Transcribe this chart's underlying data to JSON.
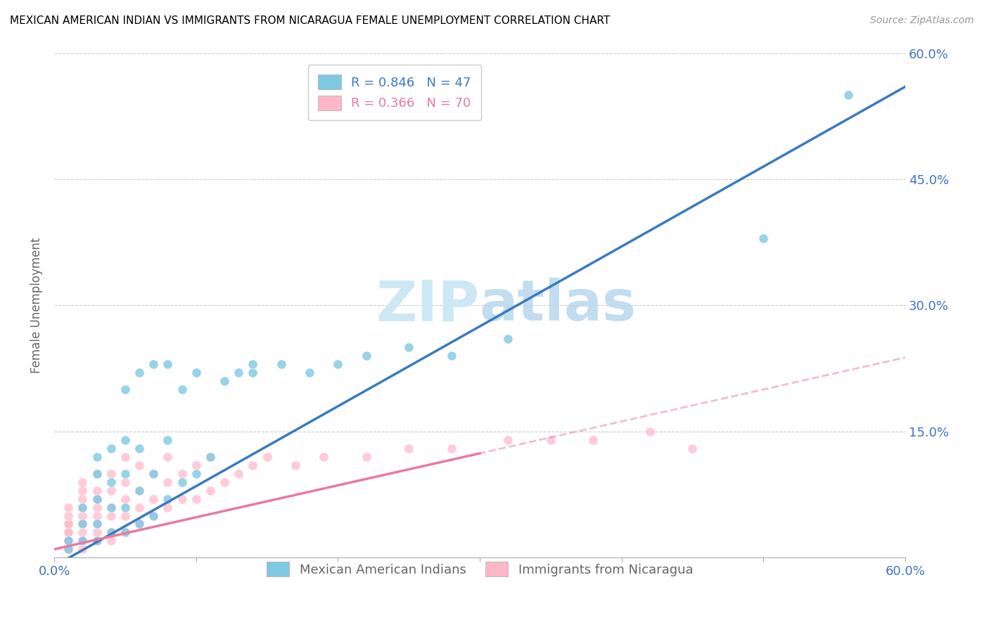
{
  "title": "MEXICAN AMERICAN INDIAN VS IMMIGRANTS FROM NICARAGUA FEMALE UNEMPLOYMENT CORRELATION CHART",
  "source": "Source: ZipAtlas.com",
  "ylabel": "Female Unemployment",
  "xlabel": "",
  "xmin": 0.0,
  "xmax": 0.6,
  "ymin": 0.0,
  "ymax": 0.6,
  "yticks": [
    0.0,
    0.15,
    0.3,
    0.45,
    0.6
  ],
  "ytick_labels": [
    "",
    "15.0%",
    "30.0%",
    "45.0%",
    "60.0%"
  ],
  "xtick_labels": [
    "0.0%",
    "",
    "",
    "",
    "",
    "",
    "60.0%"
  ],
  "legend_R1": "R = 0.846",
  "legend_N1": "N = 47",
  "legend_R2": "R = 0.366",
  "legend_N2": "N = 70",
  "legend_label1": "Mexican American Indians",
  "legend_label2": "Immigrants from Nicaragua",
  "color_blue": "#7ec8e3",
  "color_pink": "#ffb6c8",
  "color_blue_line": "#3a7abf",
  "color_pink_line": "#e87aa0",
  "watermark": "ZIPatlas",
  "watermark_color": "#cde8f5",
  "blue_line_intercept": -0.01,
  "blue_line_slope": 0.95,
  "pink_line_intercept": 0.01,
  "pink_line_slope": 0.38,
  "blue_scatter_x": [
    0.01,
    0.01,
    0.02,
    0.02,
    0.02,
    0.03,
    0.03,
    0.03,
    0.03,
    0.03,
    0.04,
    0.04,
    0.04,
    0.04,
    0.05,
    0.05,
    0.05,
    0.05,
    0.05,
    0.06,
    0.06,
    0.06,
    0.06,
    0.07,
    0.07,
    0.07,
    0.08,
    0.08,
    0.08,
    0.09,
    0.09,
    0.1,
    0.1,
    0.11,
    0.12,
    0.13,
    0.14,
    0.14,
    0.16,
    0.18,
    0.2,
    0.22,
    0.25,
    0.28,
    0.32,
    0.5,
    0.56
  ],
  "blue_scatter_y": [
    0.01,
    0.02,
    0.02,
    0.04,
    0.06,
    0.02,
    0.04,
    0.07,
    0.1,
    0.12,
    0.03,
    0.06,
    0.09,
    0.13,
    0.03,
    0.06,
    0.1,
    0.14,
    0.2,
    0.04,
    0.08,
    0.13,
    0.22,
    0.05,
    0.1,
    0.23,
    0.07,
    0.14,
    0.23,
    0.09,
    0.2,
    0.1,
    0.22,
    0.12,
    0.21,
    0.22,
    0.22,
    0.23,
    0.23,
    0.22,
    0.23,
    0.24,
    0.25,
    0.24,
    0.26,
    0.38,
    0.55
  ],
  "pink_scatter_x": [
    0.01,
    0.01,
    0.01,
    0.01,
    0.01,
    0.01,
    0.01,
    0.01,
    0.01,
    0.01,
    0.02,
    0.02,
    0.02,
    0.02,
    0.02,
    0.02,
    0.02,
    0.02,
    0.02,
    0.02,
    0.02,
    0.03,
    0.03,
    0.03,
    0.03,
    0.03,
    0.03,
    0.03,
    0.03,
    0.04,
    0.04,
    0.04,
    0.04,
    0.04,
    0.04,
    0.05,
    0.05,
    0.05,
    0.05,
    0.05,
    0.06,
    0.06,
    0.06,
    0.06,
    0.07,
    0.07,
    0.07,
    0.08,
    0.08,
    0.08,
    0.09,
    0.09,
    0.1,
    0.1,
    0.11,
    0.11,
    0.12,
    0.13,
    0.14,
    0.15,
    0.17,
    0.19,
    0.22,
    0.25,
    0.28,
    0.32,
    0.35,
    0.38,
    0.42,
    0.45
  ],
  "pink_scatter_y": [
    0.01,
    0.01,
    0.02,
    0.02,
    0.03,
    0.03,
    0.04,
    0.04,
    0.05,
    0.06,
    0.01,
    0.02,
    0.02,
    0.03,
    0.04,
    0.04,
    0.05,
    0.06,
    0.07,
    0.08,
    0.09,
    0.02,
    0.03,
    0.04,
    0.05,
    0.06,
    0.07,
    0.08,
    0.1,
    0.02,
    0.03,
    0.05,
    0.06,
    0.08,
    0.1,
    0.03,
    0.05,
    0.07,
    0.09,
    0.12,
    0.04,
    0.06,
    0.08,
    0.11,
    0.05,
    0.07,
    0.1,
    0.06,
    0.09,
    0.12,
    0.07,
    0.1,
    0.07,
    0.11,
    0.08,
    0.12,
    0.09,
    0.1,
    0.11,
    0.12,
    0.11,
    0.12,
    0.12,
    0.13,
    0.13,
    0.14,
    0.14,
    0.14,
    0.15,
    0.13
  ]
}
